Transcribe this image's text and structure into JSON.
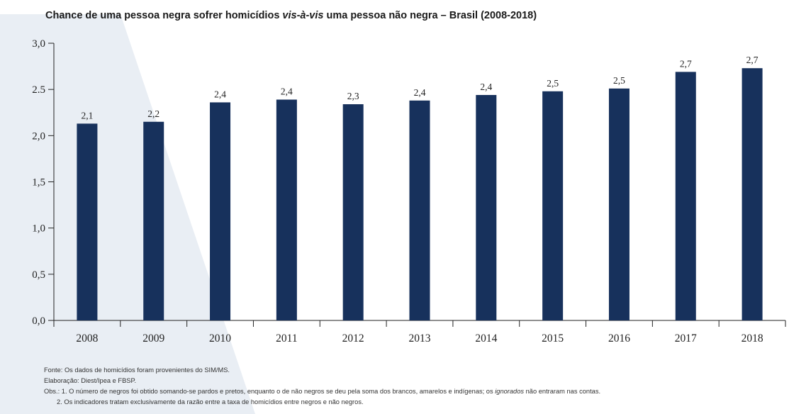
{
  "title": {
    "prefix": "Chance de uma pessoa negra sofrer homicídios ",
    "italic": "vis-à-vis",
    "suffix": " uma pessoa não negra – Brasil (2008-2018)"
  },
  "colors": {
    "bar": "#17315c",
    "axis": "#222222",
    "wedge": "#e9eef4"
  },
  "chart_data": {
    "type": "bar",
    "title": "Chance de uma pessoa negra sofrer homicídios vis-à-vis uma pessoa não negra – Brasil (2008-2018)",
    "categories": [
      "2008",
      "2009",
      "2010",
      "2011",
      "2012",
      "2013",
      "2014",
      "2015",
      "2016",
      "2017",
      "2018"
    ],
    "values": [
      2.13,
      2.15,
      2.36,
      2.39,
      2.34,
      2.38,
      2.44,
      2.48,
      2.51,
      2.69,
      2.73
    ],
    "data_labels": [
      "2,1",
      "2,2",
      "2,4",
      "2,4",
      "2,3",
      "2,4",
      "2,4",
      "2,5",
      "2,5",
      "2,7",
      "2,7"
    ],
    "yticks": [
      "0,0",
      "0,5",
      "1,0",
      "1,5",
      "2,0",
      "2.5",
      "3,0"
    ],
    "ylim": [
      0,
      3
    ],
    "xlabel": "",
    "ylabel": "",
    "grid": false
  },
  "notes": {
    "source": "Fonte: Os dados de homicídios foram provenientes do SIM/MS.",
    "elaboration": "Elaboração: Diest/Ipea e FBSP.",
    "obs1_before": "Obs.: 1. O número de negros foi obtido somando-se pardos e pretos, enquanto o de não negros se deu pela soma dos brancos, amarelos e indígenas; os ",
    "obs1_italic": "ignorados",
    "obs1_after": " não entraram nas contas.",
    "obs2": "2. Os indicadores tratam exclusivamente da razão entre a taxa de homicídios entre negros e não negros."
  }
}
